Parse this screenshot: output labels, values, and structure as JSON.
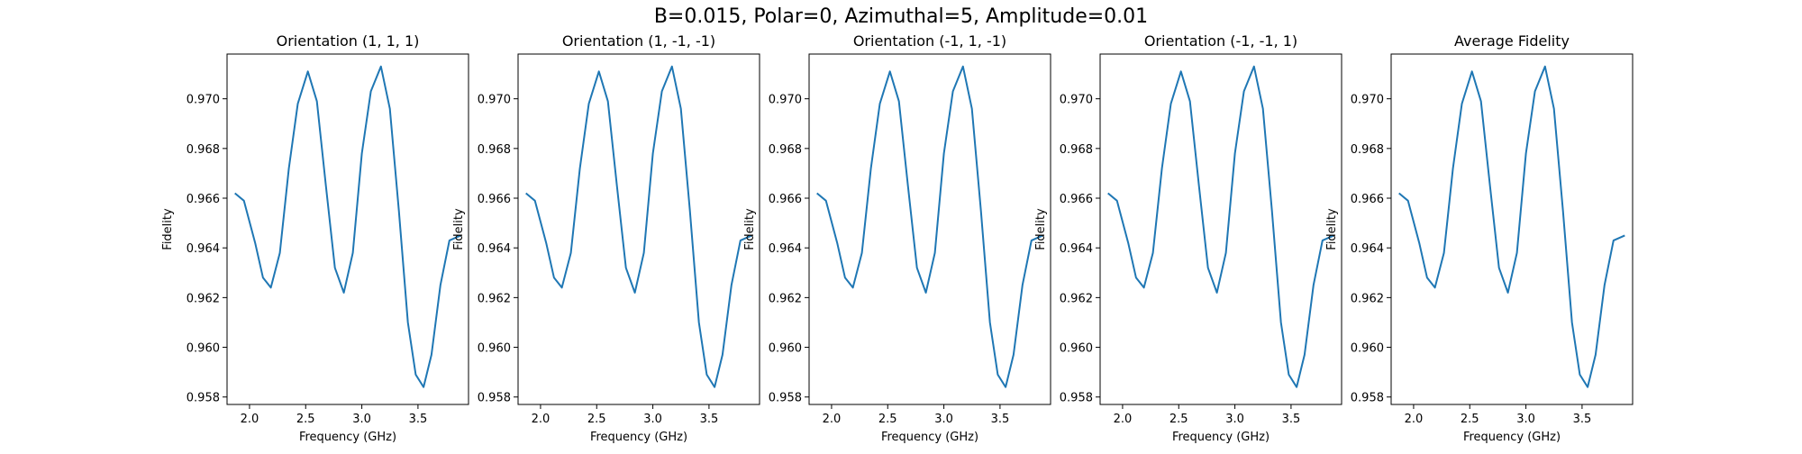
{
  "figure": {
    "suptitle": "B=0.015, Polar=0, Azimuthal=5, Amplitude=0.01"
  },
  "colors": {
    "line": "#1f77b4",
    "axes": "#000000",
    "background": "#ffffff"
  },
  "chart_data": [
    {
      "type": "line",
      "title": "Orientation (1, 1, 1)",
      "xlabel": "Frequency (GHz)",
      "ylabel": "Fidelity",
      "xlim": [
        1.8,
        3.95
      ],
      "ylim": [
        0.9577,
        0.9718
      ],
      "xticks": [
        "2.0",
        "2.5",
        "3.0",
        "3.5"
      ],
      "yticks": [
        "0.958",
        "0.960",
        "0.962",
        "0.964",
        "0.966",
        "0.968",
        "0.970"
      ],
      "grid": false,
      "series": [
        {
          "x": [
            1.87,
            1.95,
            2.05,
            2.12,
            2.19,
            2.27,
            2.35,
            2.43,
            2.52,
            2.6,
            2.68,
            2.76,
            2.84,
            2.92,
            3.0,
            3.08,
            3.17,
            3.25,
            3.33,
            3.41,
            3.48,
            3.55,
            3.62,
            3.7,
            3.78,
            3.88
          ],
          "values": [
            0.9662,
            0.9659,
            0.9642,
            0.9628,
            0.9624,
            0.9638,
            0.9672,
            0.9698,
            0.9711,
            0.9699,
            0.9665,
            0.9632,
            0.9622,
            0.9638,
            0.9678,
            0.9703,
            0.9713,
            0.9696,
            0.9655,
            0.961,
            0.9589,
            0.9584,
            0.9597,
            0.9625,
            0.9643,
            0.9645
          ]
        }
      ]
    },
    {
      "type": "line",
      "title": "Orientation (1, -1, -1)",
      "xlabel": "Frequency (GHz)",
      "ylabel": "Fidelity",
      "xlim": [
        1.8,
        3.95
      ],
      "ylim": [
        0.9577,
        0.9718
      ],
      "xticks": [
        "2.0",
        "2.5",
        "3.0",
        "3.5"
      ],
      "yticks": [
        "0.958",
        "0.960",
        "0.962",
        "0.964",
        "0.966",
        "0.968",
        "0.970"
      ],
      "grid": false,
      "series": [
        {
          "x": [
            1.87,
            1.95,
            2.05,
            2.12,
            2.19,
            2.27,
            2.35,
            2.43,
            2.52,
            2.6,
            2.68,
            2.76,
            2.84,
            2.92,
            3.0,
            3.08,
            3.17,
            3.25,
            3.33,
            3.41,
            3.48,
            3.55,
            3.62,
            3.7,
            3.78,
            3.88
          ],
          "values": [
            0.9662,
            0.9659,
            0.9642,
            0.9628,
            0.9624,
            0.9638,
            0.9672,
            0.9698,
            0.9711,
            0.9699,
            0.9665,
            0.9632,
            0.9622,
            0.9638,
            0.9678,
            0.9703,
            0.9713,
            0.9696,
            0.9655,
            0.961,
            0.9589,
            0.9584,
            0.9597,
            0.9625,
            0.9643,
            0.9645
          ]
        }
      ]
    },
    {
      "type": "line",
      "title": "Orientation (-1, 1, -1)",
      "xlabel": "Frequency (GHz)",
      "ylabel": "Fidelity",
      "xlim": [
        1.8,
        3.95
      ],
      "ylim": [
        0.9577,
        0.9718
      ],
      "xticks": [
        "2.0",
        "2.5",
        "3.0",
        "3.5"
      ],
      "yticks": [
        "0.958",
        "0.960",
        "0.962",
        "0.964",
        "0.966",
        "0.968",
        "0.970"
      ],
      "grid": false,
      "series": [
        {
          "x": [
            1.87,
            1.95,
            2.05,
            2.12,
            2.19,
            2.27,
            2.35,
            2.43,
            2.52,
            2.6,
            2.68,
            2.76,
            2.84,
            2.92,
            3.0,
            3.08,
            3.17,
            3.25,
            3.33,
            3.41,
            3.48,
            3.55,
            3.62,
            3.7,
            3.78,
            3.88
          ],
          "values": [
            0.9662,
            0.9659,
            0.9642,
            0.9628,
            0.9624,
            0.9638,
            0.9672,
            0.9698,
            0.9711,
            0.9699,
            0.9665,
            0.9632,
            0.9622,
            0.9638,
            0.9678,
            0.9703,
            0.9713,
            0.9696,
            0.9655,
            0.961,
            0.9589,
            0.9584,
            0.9597,
            0.9625,
            0.9643,
            0.9645
          ]
        }
      ]
    },
    {
      "type": "line",
      "title": "Orientation (-1, -1, 1)",
      "xlabel": "Frequency (GHz)",
      "ylabel": "Fidelity",
      "xlim": [
        1.8,
        3.95
      ],
      "ylim": [
        0.9577,
        0.9718
      ],
      "xticks": [
        "2.0",
        "2.5",
        "3.0",
        "3.5"
      ],
      "yticks": [
        "0.958",
        "0.960",
        "0.962",
        "0.964",
        "0.966",
        "0.968",
        "0.970"
      ],
      "grid": false,
      "series": [
        {
          "x": [
            1.87,
            1.95,
            2.05,
            2.12,
            2.19,
            2.27,
            2.35,
            2.43,
            2.52,
            2.6,
            2.68,
            2.76,
            2.84,
            2.92,
            3.0,
            3.08,
            3.17,
            3.25,
            3.33,
            3.41,
            3.48,
            3.55,
            3.62,
            3.7,
            3.78,
            3.88
          ],
          "values": [
            0.9662,
            0.9659,
            0.9642,
            0.9628,
            0.9624,
            0.9638,
            0.9672,
            0.9698,
            0.9711,
            0.9699,
            0.9665,
            0.9632,
            0.9622,
            0.9638,
            0.9678,
            0.9703,
            0.9713,
            0.9696,
            0.9655,
            0.961,
            0.9589,
            0.9584,
            0.9597,
            0.9625,
            0.9643,
            0.9645
          ]
        }
      ]
    },
    {
      "type": "line",
      "title": "Average Fidelity",
      "xlabel": "Frequency (GHz)",
      "ylabel": "Fidelity",
      "xlim": [
        1.8,
        3.95
      ],
      "ylim": [
        0.9577,
        0.9718
      ],
      "xticks": [
        "2.0",
        "2.5",
        "3.0",
        "3.5"
      ],
      "yticks": [
        "0.958",
        "0.960",
        "0.962",
        "0.964",
        "0.966",
        "0.968",
        "0.970"
      ],
      "grid": false,
      "series": [
        {
          "x": [
            1.87,
            1.95,
            2.05,
            2.12,
            2.19,
            2.27,
            2.35,
            2.43,
            2.52,
            2.6,
            2.68,
            2.76,
            2.84,
            2.92,
            3.0,
            3.08,
            3.17,
            3.25,
            3.33,
            3.41,
            3.48,
            3.55,
            3.62,
            3.7,
            3.78,
            3.88
          ],
          "values": [
            0.9662,
            0.9659,
            0.9642,
            0.9628,
            0.9624,
            0.9638,
            0.9672,
            0.9698,
            0.9711,
            0.9699,
            0.9665,
            0.9632,
            0.9622,
            0.9638,
            0.9678,
            0.9703,
            0.9713,
            0.9696,
            0.9655,
            0.961,
            0.9589,
            0.9584,
            0.9597,
            0.9625,
            0.9643,
            0.9645
          ]
        }
      ]
    }
  ]
}
